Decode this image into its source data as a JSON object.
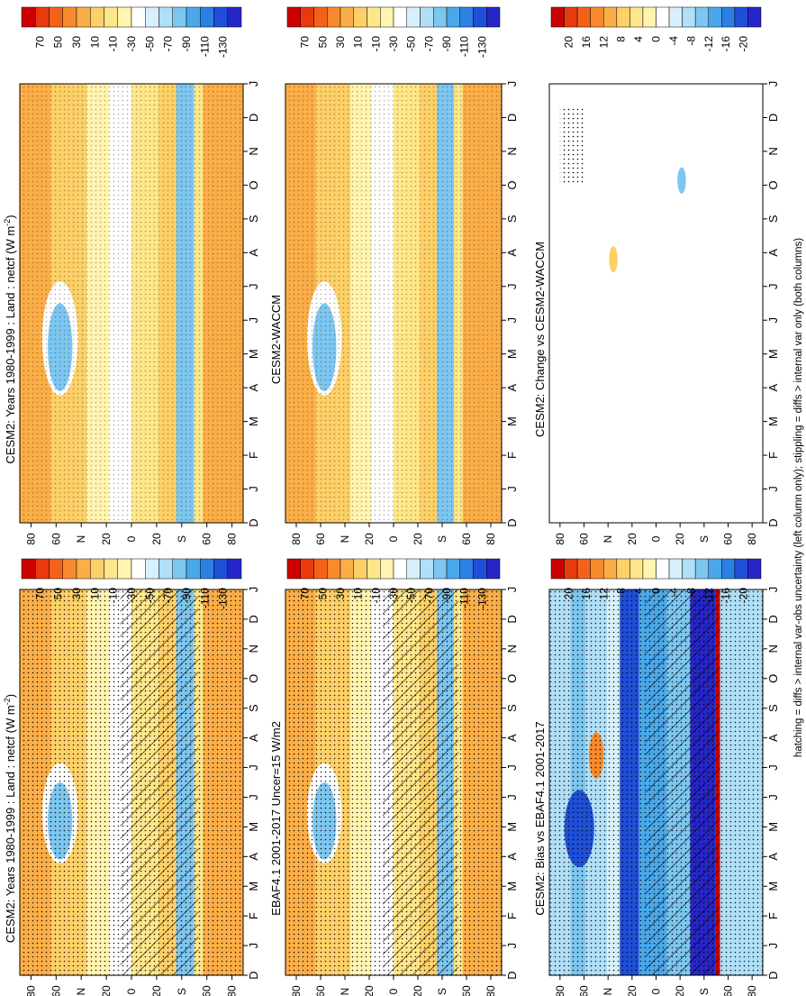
{
  "footnote": "hatching = diffs > internal var-obs uncertainty (left column only); stippling = diffs > internal var only (both columns)",
  "chart_data": [
    {
      "id": "p1",
      "type": "heatmap",
      "title": "CESM2: Years 1980-1999 : Land : netcf (W m",
      "title_exp": "-2",
      "title_end": ")",
      "months": [
        "D",
        "J",
        "F",
        "M",
        "A",
        "M",
        "J",
        "J",
        "A",
        "S",
        "O",
        "N",
        "D",
        "J"
      ],
      "lats": [
        "80",
        "60",
        "N",
        "20",
        "0",
        "20",
        "S",
        "60",
        "80"
      ],
      "cbar": {
        "labels": [
          "70",
          "50",
          "30",
          "10",
          "-10",
          "-30",
          "-50",
          "-70",
          "-90",
          "-110",
          "-130"
        ],
        "colors": [
          "#cc0000",
          "#e83a0c",
          "#f4621a",
          "#f88a2e",
          "#fbae48",
          "#fdd068",
          "#fee68a",
          "#fff4b0",
          "#ffffff",
          "#d8f0fb",
          "#b0dff7",
          "#7dc6f0",
          "#4aa8ea",
          "#2c80e4",
          "#1f4fd6",
          "#2626c8"
        ]
      }
    },
    {
      "id": "p2",
      "type": "heatmap",
      "title": "CESM2: Years 1980-1999 : Land : netcf (W m",
      "title_exp": "-2",
      "title_end": ")",
      "months": [
        "D",
        "J",
        "F",
        "M",
        "A",
        "M",
        "J",
        "J",
        "A",
        "S",
        "O",
        "N",
        "D",
        "J"
      ],
      "lats": [
        "80",
        "60",
        "N",
        "20",
        "0",
        "20",
        "S",
        "60",
        "80"
      ],
      "cbar": {
        "labels": [
          "70",
          "50",
          "30",
          "10",
          "-10",
          "-30",
          "-50",
          "-70",
          "-90",
          "-110",
          "-130"
        ],
        "colors": [
          "#cc0000",
          "#e83a0c",
          "#f4621a",
          "#f88a2e",
          "#fbae48",
          "#fdd068",
          "#fee68a",
          "#fff4b0",
          "#ffffff",
          "#d8f0fb",
          "#b0dff7",
          "#7dc6f0",
          "#4aa8ea",
          "#2c80e4",
          "#1f4fd6",
          "#2626c8"
        ]
      }
    },
    {
      "id": "p3",
      "type": "heatmap",
      "title": "EBAF4.1 2001-2017 Uncer=15 W/m2",
      "title_exp": "",
      "title_end": "",
      "months": [
        "D",
        "J",
        "F",
        "M",
        "A",
        "M",
        "J",
        "J",
        "A",
        "S",
        "O",
        "N",
        "D",
        "J"
      ],
      "lats": [
        "80",
        "60",
        "N",
        "20",
        "0",
        "20",
        "S",
        "60",
        "80"
      ],
      "cbar": {
        "labels": [
          "70",
          "50",
          "30",
          "10",
          "-10",
          "-30",
          "-50",
          "-70",
          "-90",
          "-110",
          "-130"
        ],
        "colors": [
          "#cc0000",
          "#e83a0c",
          "#f4621a",
          "#f88a2e",
          "#fbae48",
          "#fdd068",
          "#fee68a",
          "#fff4b0",
          "#ffffff",
          "#d8f0fb",
          "#b0dff7",
          "#7dc6f0",
          "#4aa8ea",
          "#2c80e4",
          "#1f4fd6",
          "#2626c8"
        ]
      }
    },
    {
      "id": "p4",
      "type": "heatmap",
      "title": "CESM2-WACCM",
      "title_exp": "",
      "title_end": "",
      "months": [
        "D",
        "J",
        "F",
        "M",
        "A",
        "M",
        "J",
        "J",
        "A",
        "S",
        "O",
        "N",
        "D",
        "J"
      ],
      "lats": [
        "80",
        "60",
        "N",
        "20",
        "0",
        "20",
        "S",
        "60",
        "80"
      ],
      "cbar": {
        "labels": [
          "70",
          "50",
          "30",
          "10",
          "-10",
          "-30",
          "-50",
          "-70",
          "-90",
          "-110",
          "-130"
        ],
        "colors": [
          "#cc0000",
          "#e83a0c",
          "#f4621a",
          "#f88a2e",
          "#fbae48",
          "#fdd068",
          "#fee68a",
          "#fff4b0",
          "#ffffff",
          "#d8f0fb",
          "#b0dff7",
          "#7dc6f0",
          "#4aa8ea",
          "#2c80e4",
          "#1f4fd6",
          "#2626c8"
        ]
      }
    },
    {
      "id": "p5",
      "type": "heatmap",
      "title": "CESM2: Bias vs EBAF4.1 2001-2017",
      "title_exp": "",
      "title_end": "",
      "months": [
        "D",
        "J",
        "F",
        "M",
        "A",
        "M",
        "J",
        "J",
        "A",
        "S",
        "O",
        "N",
        "D",
        "J"
      ],
      "lats": [
        "80",
        "60",
        "N",
        "20",
        "0",
        "20",
        "S",
        "60",
        "80"
      ],
      "cbar": {
        "labels": [
          "20",
          "16",
          "12",
          "8",
          "4",
          "0",
          "-4",
          "-8",
          "-12",
          "-16",
          "-20"
        ],
        "colors": [
          "#cc0000",
          "#e83a0c",
          "#f4621a",
          "#f88a2e",
          "#fbae48",
          "#fdd068",
          "#fee68a",
          "#fff4b0",
          "#ffffff",
          "#d8f0fb",
          "#b0dff7",
          "#7dc6f0",
          "#4aa8ea",
          "#2c80e4",
          "#1f4fd6",
          "#2626c8"
        ]
      }
    },
    {
      "id": "p6",
      "type": "heatmap",
      "title": "CESM2: Change vs CESM2-WACCM",
      "title_exp": "",
      "title_end": "",
      "months": [
        "D",
        "J",
        "F",
        "M",
        "A",
        "M",
        "J",
        "J",
        "A",
        "S",
        "O",
        "N",
        "D",
        "J"
      ],
      "lats": [
        "80",
        "60",
        "N",
        "20",
        "0",
        "20",
        "S",
        "60",
        "80"
      ],
      "cbar": {
        "labels": [
          "20",
          "16",
          "12",
          "8",
          "4",
          "0",
          "-4",
          "-8",
          "-12",
          "-16",
          "-20"
        ],
        "colors": [
          "#cc0000",
          "#e83a0c",
          "#f4621a",
          "#f88a2e",
          "#fbae48",
          "#fdd068",
          "#fee68a",
          "#fff4b0",
          "#ffffff",
          "#d8f0fb",
          "#b0dff7",
          "#7dc6f0",
          "#4aa8ea",
          "#2c80e4",
          "#1f4fd6",
          "#2626c8"
        ]
      }
    }
  ]
}
